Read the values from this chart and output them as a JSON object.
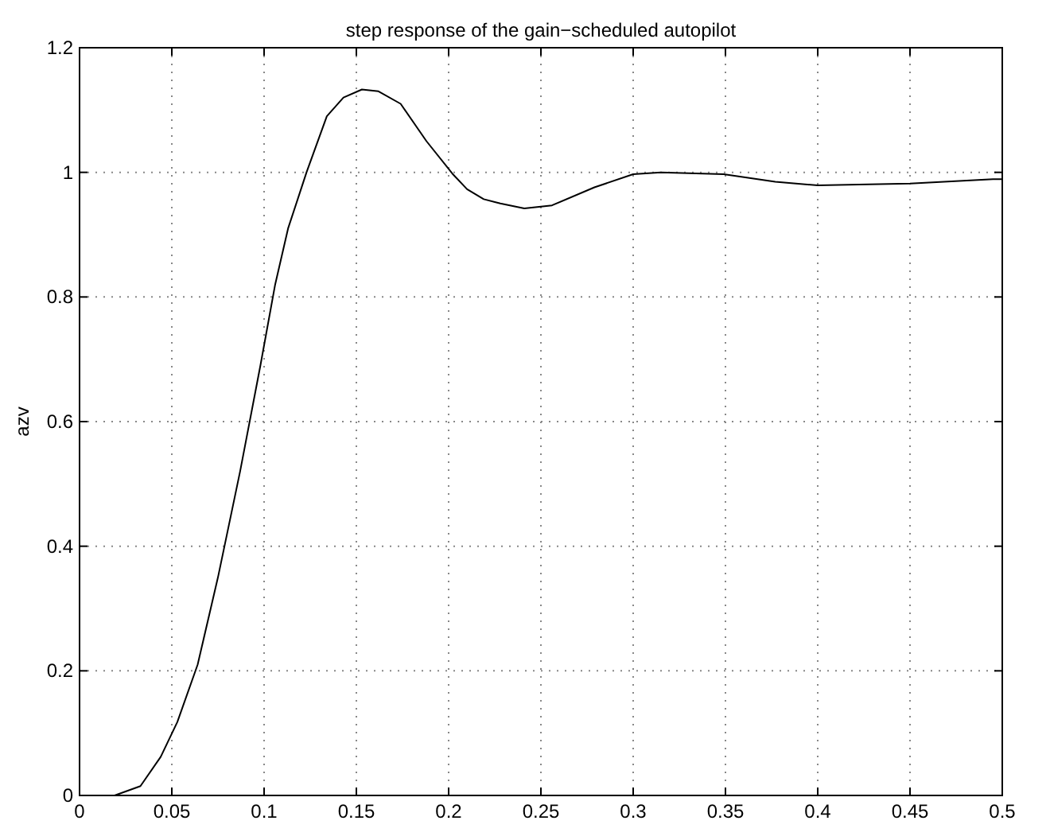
{
  "chart_data": {
    "type": "line",
    "title": "step response of the gain−scheduled autopilot",
    "ylabel": "azv",
    "xlim": [
      0,
      0.5
    ],
    "ylim": [
      0,
      1.2
    ],
    "xticks": [
      0,
      0.05,
      0.1,
      0.15,
      0.2,
      0.25,
      0.3,
      0.35,
      0.4,
      0.45,
      0.5
    ],
    "yticks": [
      0,
      0.2,
      0.4,
      0.6,
      0.8,
      1,
      1.2
    ],
    "grid": true,
    "line_style": "solid",
    "marker": "none",
    "series": [
      {
        "color": "#000000",
        "x": [
          0,
          0.019,
          0.033,
          0.044,
          0.053,
          0.064,
          0.075,
          0.087,
          0.098,
          0.106,
          0.113,
          0.123,
          0.134,
          0.143,
          0.153,
          0.162,
          0.174,
          0.188,
          0.202,
          0.21,
          0.219,
          0.228,
          0.241,
          0.256,
          0.279,
          0.3,
          0.315,
          0.349,
          0.377,
          0.4,
          0.45,
          0.495,
          0.5
        ],
        "values": [
          0,
          0,
          0.015,
          0.062,
          0.118,
          0.21,
          0.35,
          0.52,
          0.69,
          0.82,
          0.91,
          1.0,
          1.09,
          1.12,
          1.133,
          1.13,
          1.11,
          1.05,
          0.998,
          0.973,
          0.957,
          0.95,
          0.942,
          0.947,
          0.976,
          0.997,
          1.0,
          0.997,
          0.985,
          0.979,
          0.982,
          0.989,
          0.989
        ]
      }
    ]
  }
}
